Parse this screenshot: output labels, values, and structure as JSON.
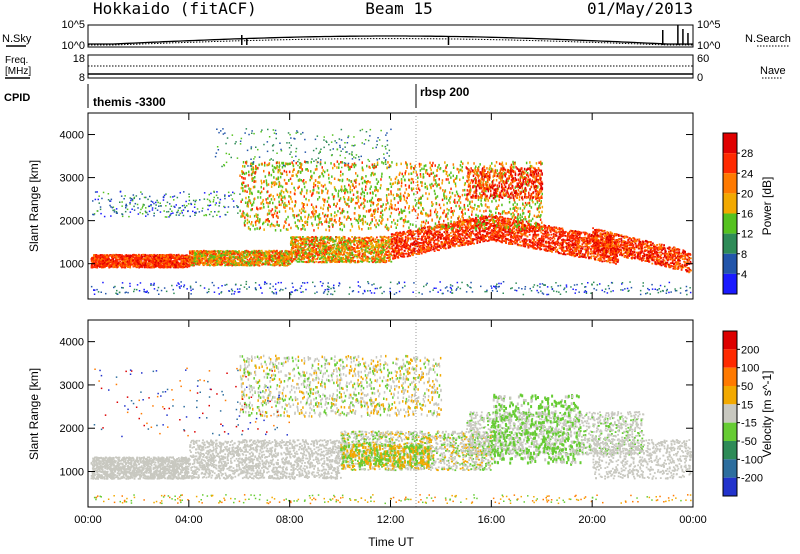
{
  "header": {
    "station": "Hokkaido (fitACF)",
    "beam": "Beam 15",
    "date": "01/May/2013"
  },
  "strips": {
    "nsky_label": "N.Sky",
    "nsearch_label": "N.Search",
    "freq_label_1": "Freq.",
    "freq_label_2": "[MHz]",
    "nave_label": "Nave",
    "cpid_label": "CPID",
    "nsky_ticks": [
      "10^5",
      "10^0"
    ],
    "nsearch_ticks": [
      "10^5",
      "10^0"
    ],
    "freq_ticks": [
      "18",
      "8"
    ],
    "nave_ticks": [
      "60",
      "0"
    ],
    "cpid_program_1": "themis -3300",
    "cpid_program_2": "rbsp 200"
  },
  "chart_data": [
    {
      "type": "heatmap",
      "panel": "power",
      "ylabel": "Slant Range [km]",
      "yticks": [
        "1000",
        "2000",
        "3000",
        "4000"
      ],
      "ylim": [
        180,
        4500
      ],
      "xlim": [
        0,
        24
      ],
      "colorbar_label": "Power [dB]",
      "colorbar_ticks": [
        "4",
        "8",
        "12",
        "16",
        "20",
        "24",
        "28"
      ],
      "colorbar_colors": [
        "#1a1aff",
        "#2255aa",
        "#2e8b57",
        "#55c21f",
        "#f2a900",
        "#ff7a00",
        "#ff2a00",
        "#e00000"
      ]
    },
    {
      "type": "heatmap",
      "panel": "velocity",
      "ylabel": "Slant Range [km]",
      "yticks": [
        "1000",
        "2000",
        "3000",
        "4000"
      ],
      "ylim": [
        180,
        4500
      ],
      "xlim": [
        0,
        24
      ],
      "xlabel": "Time UT",
      "xticks": [
        "00:00",
        "04:00",
        "08:00",
        "12:00",
        "16:00",
        "20:00",
        "00:00"
      ],
      "colorbar_label": "Velocity [m s^-1]",
      "colorbar_ticks": [
        "200",
        "100",
        "50",
        "15",
        "-15",
        "-50",
        "-100",
        "-200"
      ],
      "colorbar_colors": [
        "#2233cc",
        "#2d6e9e",
        "#2e8b57",
        "#66cc33",
        "#c8c8c0",
        "#f2a900",
        "#ff7a00",
        "#ff2a00",
        "#dd0000"
      ]
    }
  ]
}
